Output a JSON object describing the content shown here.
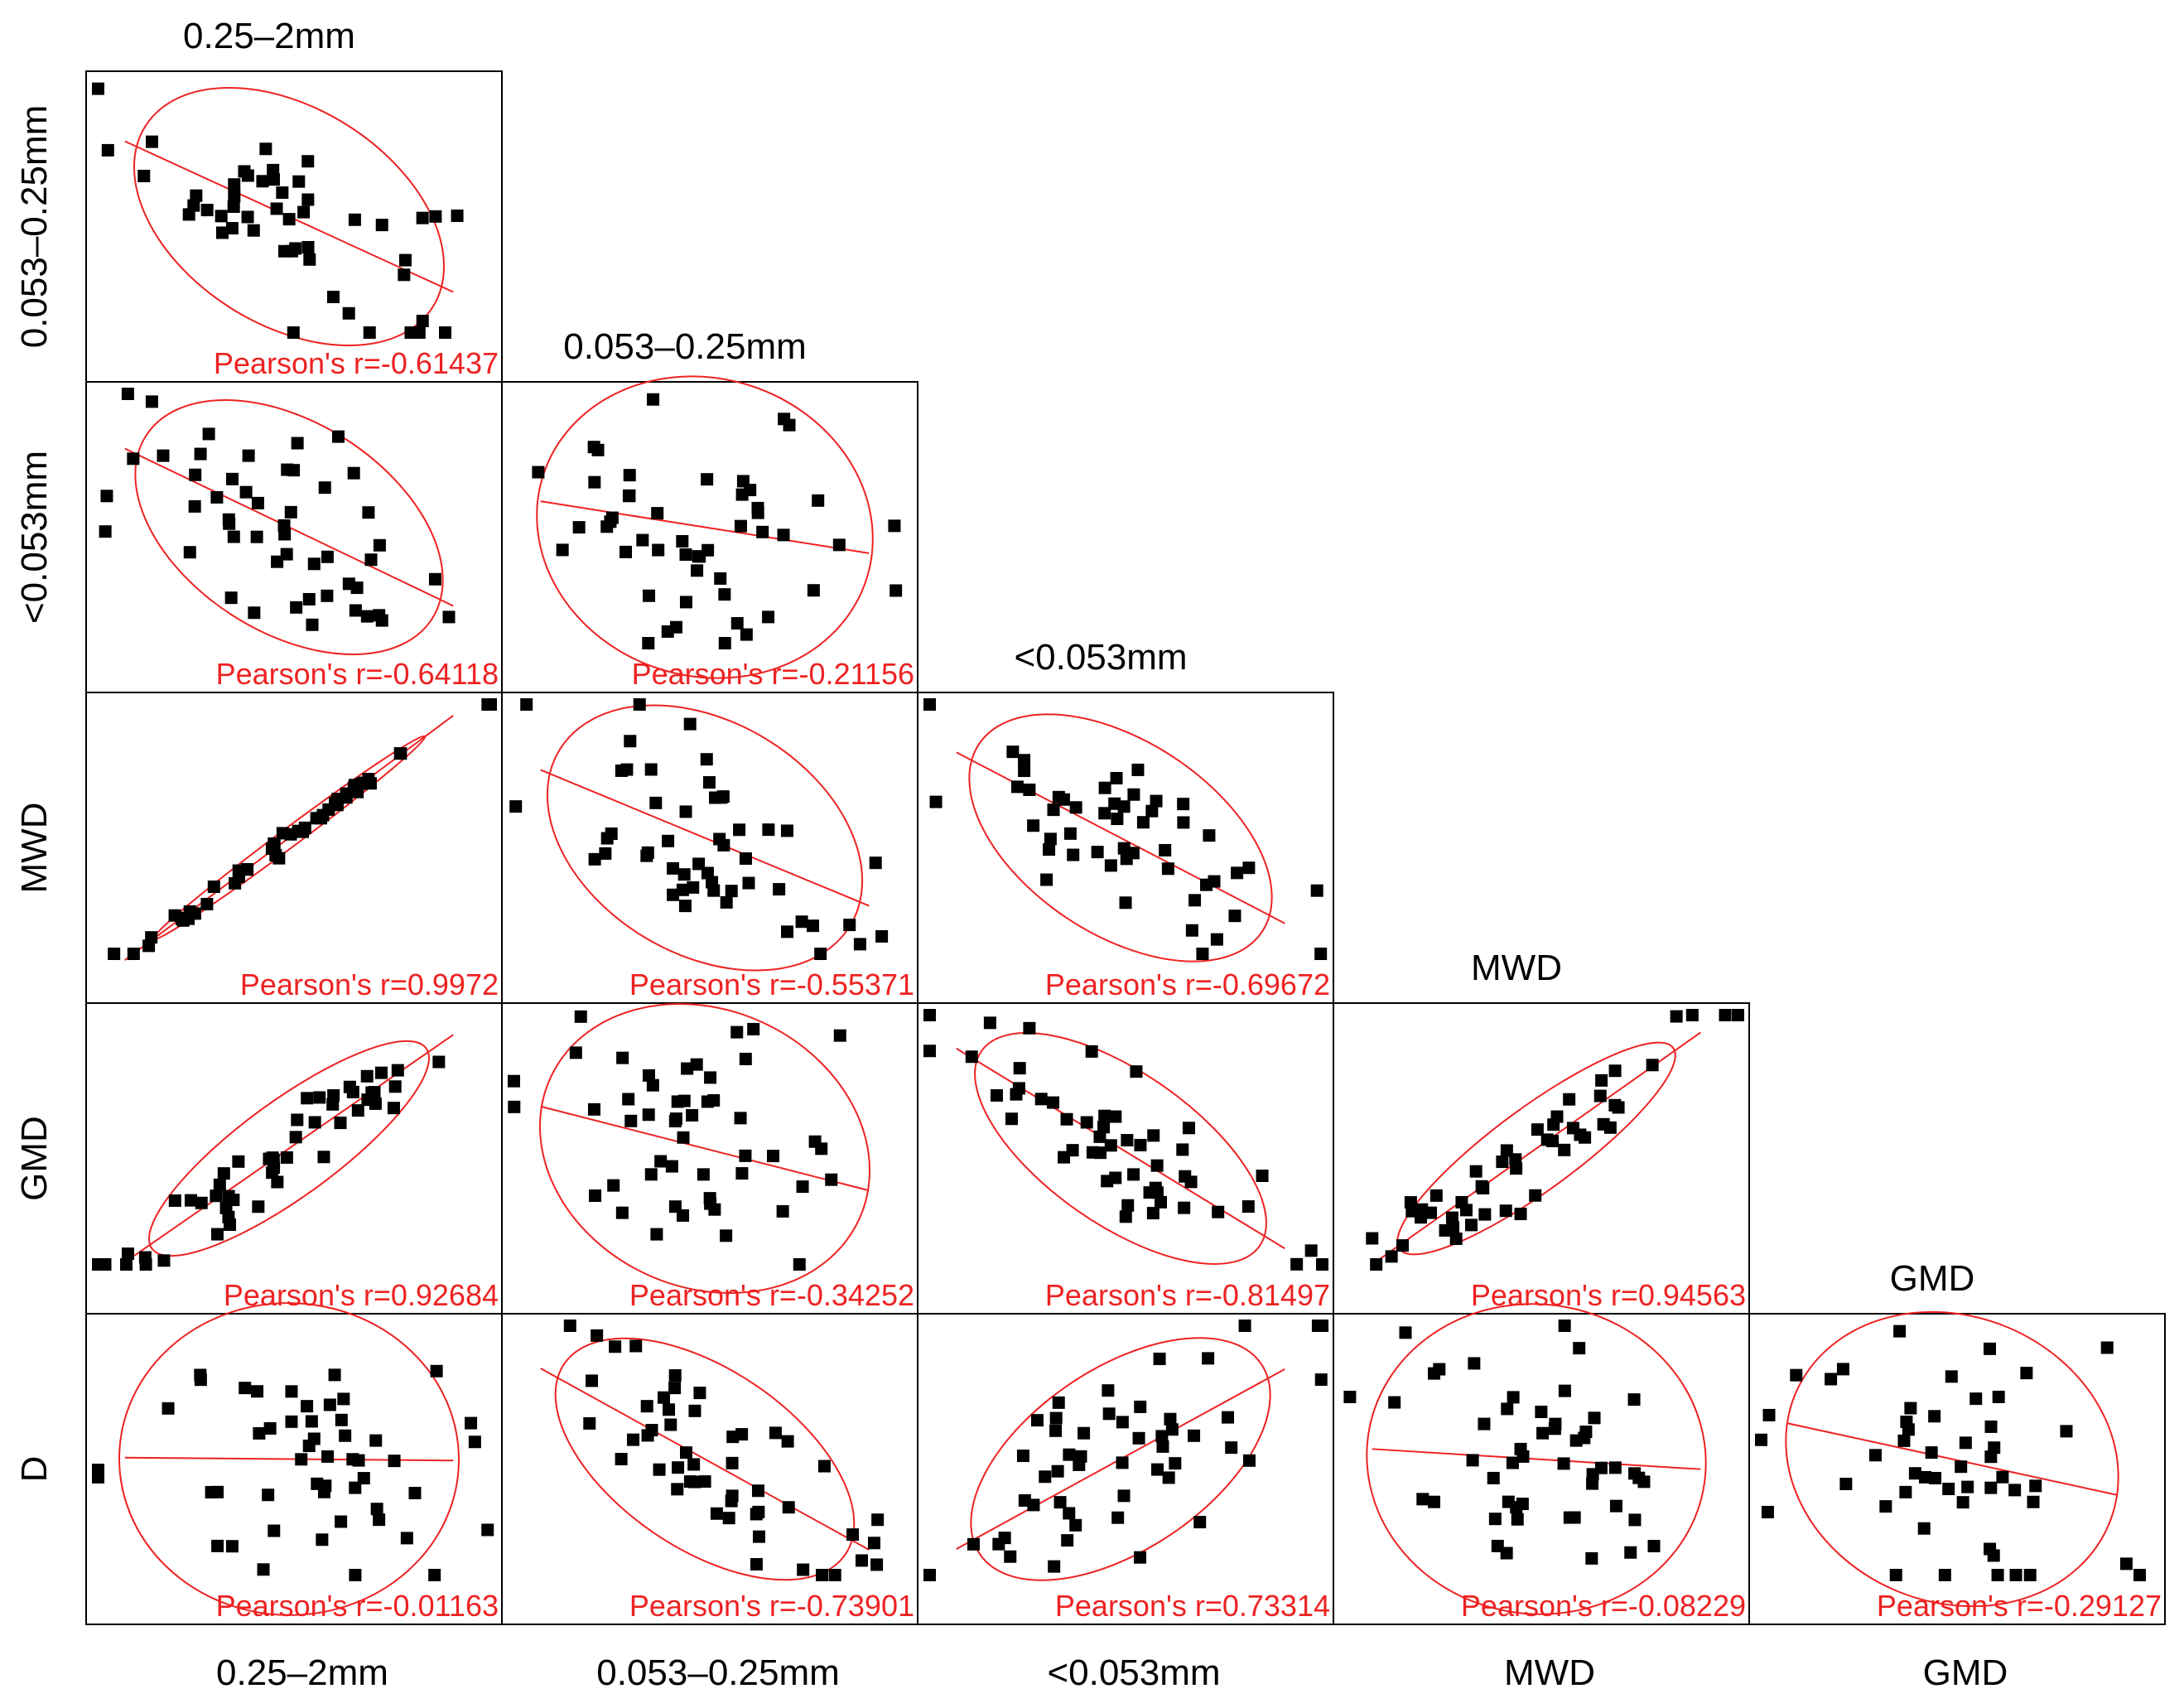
{
  "colors": {
    "frame": "#000000",
    "points": "#000000",
    "fit": "#ee2222",
    "annotation": "#ee2222"
  },
  "chart_data": {
    "type": "scatter",
    "layout": "lower-triangular scatterplot matrix with 95% confidence ellipses and linear fits",
    "variables": [
      "0.25–2mm",
      "0.053–0.25mm",
      "<0.053mm",
      "MWD",
      "GMD",
      "D"
    ],
    "column_labels": [
      "0.25–2mm",
      "0.053–0.25mm",
      "<0.053mm",
      "MWD",
      "GMD"
    ],
    "row_labels": [
      "0.053–0.25mm",
      "<0.053mm",
      "MWD",
      "GMD",
      "D"
    ],
    "diagonal_titles": [
      "0.25–2mm",
      "0.053–0.25mm",
      "<0.053mm",
      "MWD",
      "GMD"
    ],
    "annotation_prefix": "Pearson's r=",
    "panels": [
      {
        "row": 0,
        "col": 0,
        "r": "-0.61437"
      },
      {
        "row": 1,
        "col": 0,
        "r": "-0.64118"
      },
      {
        "row": 1,
        "col": 1,
        "r": "-0.21156"
      },
      {
        "row": 2,
        "col": 0,
        "r": "0.9972"
      },
      {
        "row": 2,
        "col": 1,
        "r": "-0.55371"
      },
      {
        "row": 2,
        "col": 2,
        "r": "-0.69672"
      },
      {
        "row": 3,
        "col": 0,
        "r": "0.92684"
      },
      {
        "row": 3,
        "col": 1,
        "r": "-0.34252"
      },
      {
        "row": 3,
        "col": 2,
        "r": "-0.81497"
      },
      {
        "row": 3,
        "col": 3,
        "r": "0.94563"
      },
      {
        "row": 4,
        "col": 0,
        "r": "-0.01163"
      },
      {
        "row": 4,
        "col": 1,
        "r": "-0.73901"
      },
      {
        "row": 4,
        "col": 2,
        "r": "0.73314"
      },
      {
        "row": 4,
        "col": 3,
        "r": "-0.08229"
      },
      {
        "row": 4,
        "col": 4,
        "r": "-0.29127"
      }
    ],
    "xlabel": "",
    "ylabel": "",
    "grid": false
  }
}
